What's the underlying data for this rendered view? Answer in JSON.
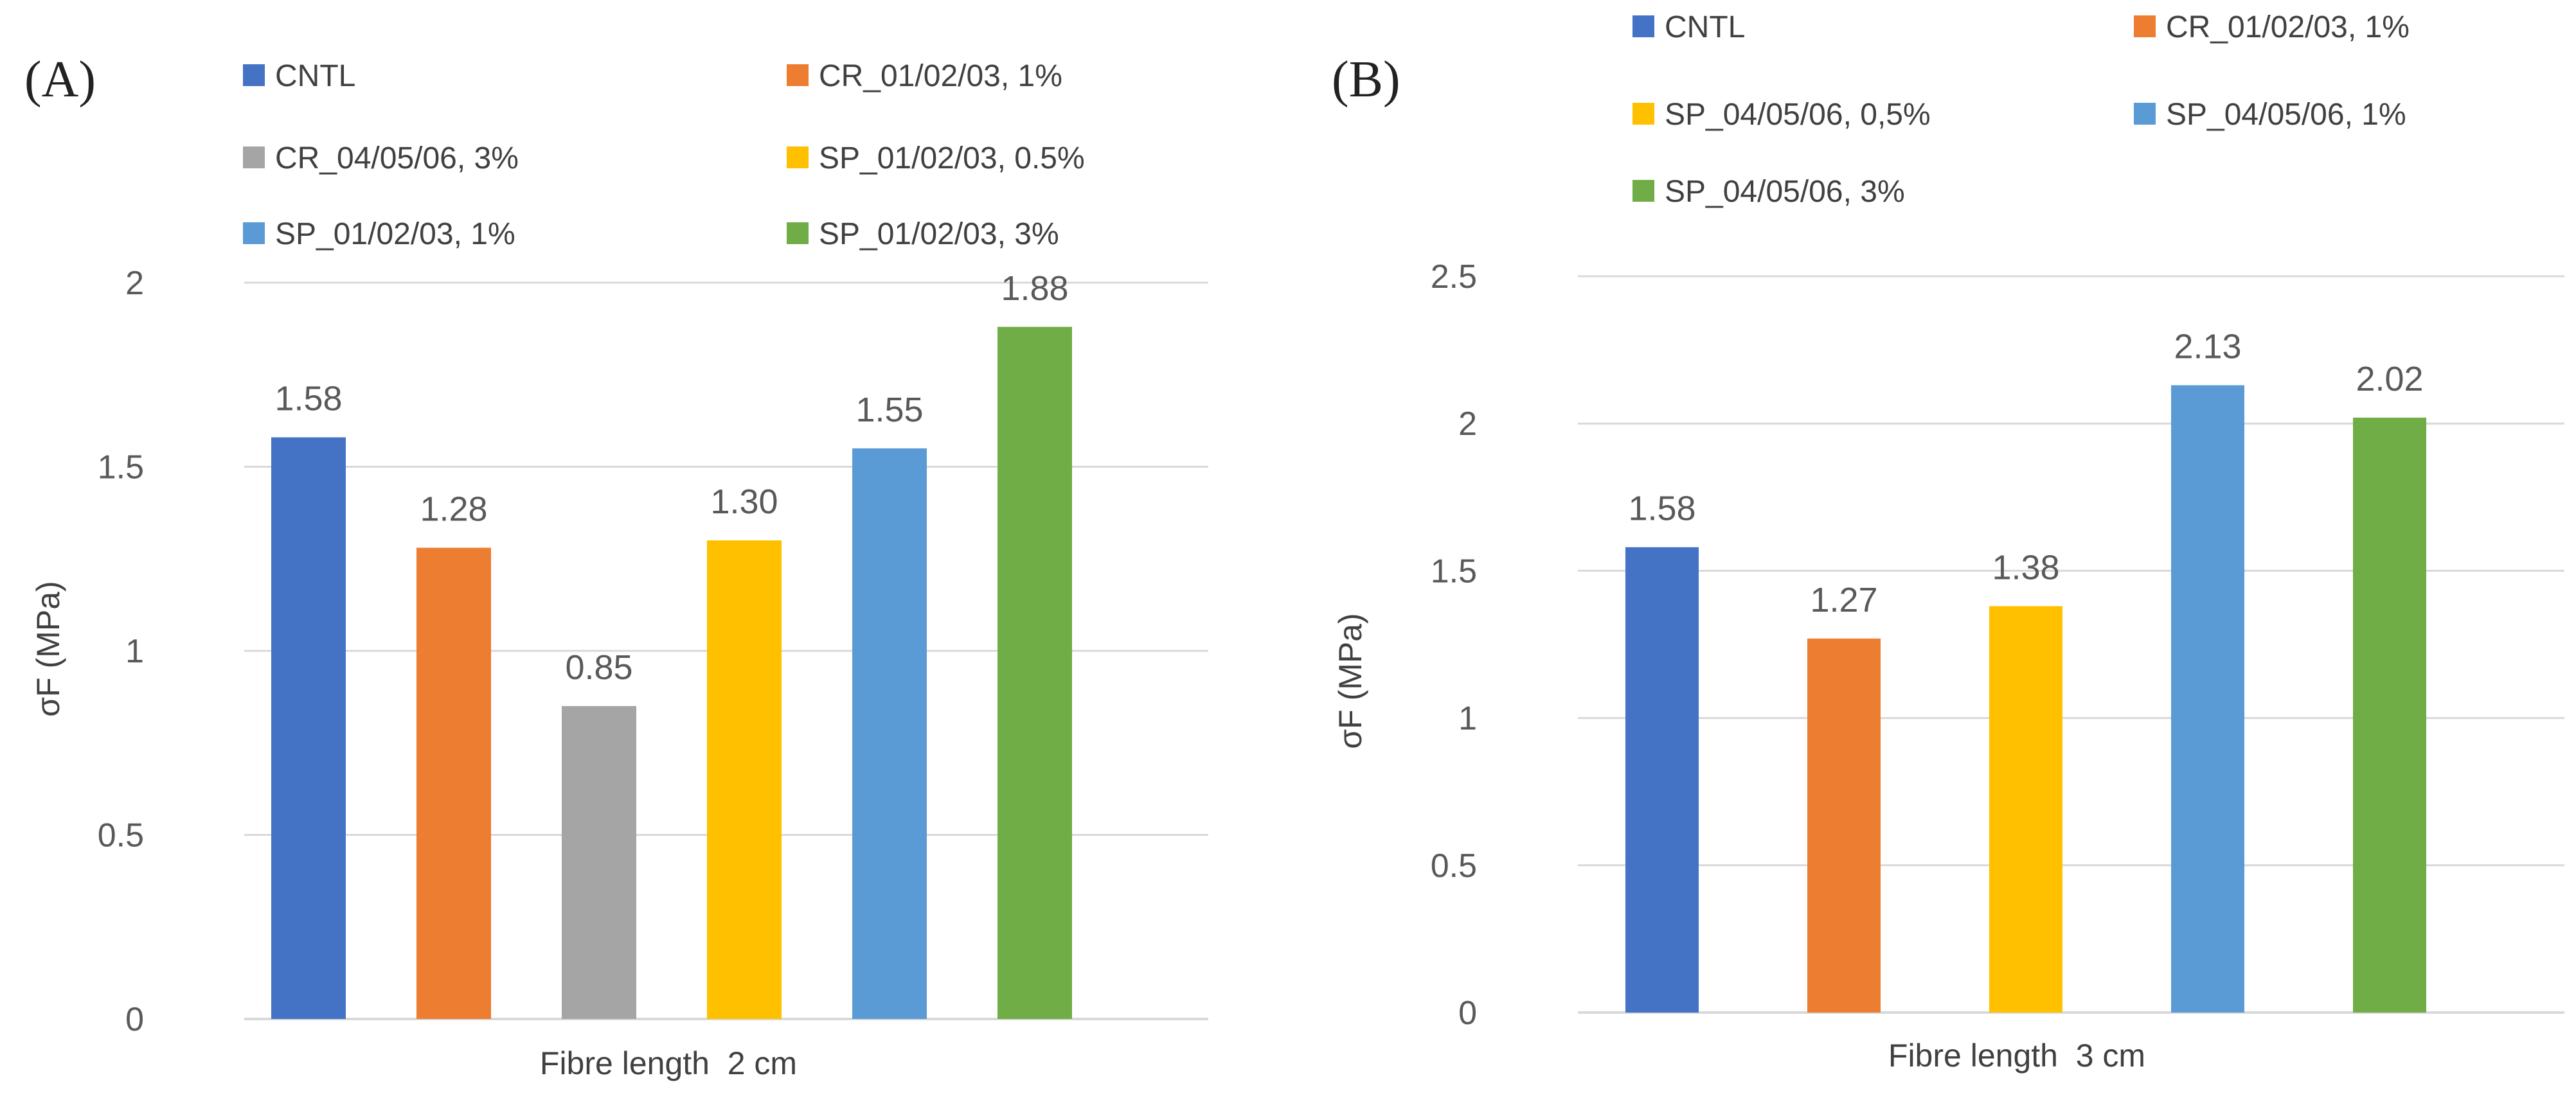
{
  "chart_data": [
    {
      "type": "bar",
      "panel_label": "(A)",
      "title": "",
      "xlabel": "Fibre length  2 cm",
      "ylabel": "σF (MPa)",
      "ylim": [
        0,
        2
      ],
      "yticks": [
        "0",
        "0.5",
        "1",
        "1.5",
        "2"
      ],
      "grid": true,
      "legend_position": "top",
      "categories": [
        "CNTL",
        "CR_01/02/03, 1%",
        "CR_04/05/06, 3%",
        "SP_01/02/03, 0.5%",
        "SP_01/02/03, 1%",
        "SP_01/02/03, 3%"
      ],
      "values": [
        1.58,
        1.28,
        0.85,
        1.3,
        1.55,
        1.88
      ],
      "value_labels": [
        "1.58",
        "1.28",
        "0.85",
        "1.30",
        "1.55",
        "1.88"
      ],
      "colors": [
        "#4472c4",
        "#ed7d31",
        "#a5a5a5",
        "#ffc000",
        "#5b9bd5",
        "#70ad47"
      ]
    },
    {
      "type": "bar",
      "panel_label": "(B)",
      "title": "",
      "xlabel": "Fibre length  3 cm",
      "ylabel": "σF (MPa)",
      "ylim": [
        0,
        2.5
      ],
      "yticks": [
        "0",
        "0.5",
        "1",
        "1.5",
        "2",
        "2.5"
      ],
      "grid": true,
      "legend_position": "top",
      "categories": [
        "CNTL",
        "CR_01/02/03, 1%",
        "SP_04/05/06, 0,5%",
        "SP_04/05/06, 1%",
        "SP_04/05/06, 3%"
      ],
      "values": [
        1.58,
        1.27,
        1.38,
        2.13,
        2.02
      ],
      "value_labels": [
        "1.58",
        "1.27",
        "1.38",
        "2.13",
        "2.02"
      ],
      "colors": [
        "#4472c4",
        "#ed7d31",
        "#ffc000",
        "#5b9bd5",
        "#70ad47"
      ]
    }
  ]
}
